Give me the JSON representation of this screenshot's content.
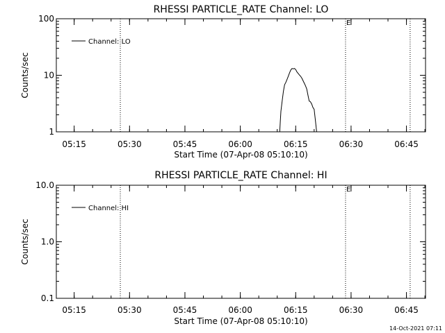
{
  "footer": {
    "timestamp": "14-Oct-2021 07:11"
  },
  "chart_data": [
    {
      "type": "line",
      "title": "RHESSI PARTICLE_RATE Channel: LO",
      "xlabel": "Start Time (07-Apr-08 05:10:10)",
      "ylabel": "Counts/sec",
      "y_scale": "log",
      "ylim": [
        1,
        100
      ],
      "yticks": [
        1,
        10,
        100
      ],
      "ytick_labels": [
        "1",
        "10",
        "100"
      ],
      "xlim": [
        "05:10:10",
        "06:50:10"
      ],
      "xticks": [
        "05:15",
        "05:30",
        "05:45",
        "06:00",
        "06:15",
        "06:30",
        "06:45"
      ],
      "legend": {
        "position": "top-left",
        "entries": [
          "Channel: LO"
        ]
      },
      "annotations": [
        {
          "time": "05:27:30",
          "text": ""
        },
        {
          "time": "06:28:30",
          "text": "E"
        },
        {
          "time": "06:46:00",
          "text": ""
        }
      ],
      "series": [
        {
          "name": "Channel: LO",
          "x": [
            "06:10:40",
            "06:10:50",
            "06:11:00",
            "06:11:20",
            "06:11:40",
            "06:12:00",
            "06:12:20",
            "06:12:40",
            "06:13:00",
            "06:13:20",
            "06:13:40",
            "06:14:00",
            "06:14:20",
            "06:14:40",
            "06:15:00",
            "06:15:20",
            "06:15:40",
            "06:16:00",
            "06:16:20",
            "06:16:40",
            "06:17:00",
            "06:17:20",
            "06:17:40",
            "06:18:00",
            "06:18:20",
            "06:18:40",
            "06:19:00",
            "06:19:20",
            "06:19:40",
            "06:20:00",
            "06:20:20",
            "06:20:40"
          ],
          "y": [
            1,
            1.5,
            2.3,
            3.5,
            5.2,
            6.8,
            7.5,
            8.5,
            9.6,
            11,
            12.4,
            13.2,
            13,
            13.2,
            12.6,
            11.5,
            10.8,
            10.1,
            9.6,
            8.9,
            8,
            7.2,
            6.5,
            5.7,
            4.4,
            3.5,
            3.4,
            3.1,
            2.7,
            2.5,
            1.6,
            1
          ]
        }
      ]
    },
    {
      "type": "line",
      "title": "RHESSI PARTICLE_RATE Channel: HI",
      "xlabel": "Start Time (07-Apr-08 05:10:10)",
      "ylabel": "Counts/sec",
      "y_scale": "log",
      "ylim": [
        0.1,
        10
      ],
      "yticks": [
        0.1,
        1,
        10
      ],
      "ytick_labels": [
        "0.1",
        "1.0",
        "10.0"
      ],
      "xlim": [
        "05:10:10",
        "06:50:10"
      ],
      "xticks": [
        "05:15",
        "05:30",
        "05:45",
        "06:00",
        "06:15",
        "06:30",
        "06:45"
      ],
      "legend": {
        "position": "top-left",
        "entries": [
          "Channel: HI"
        ]
      },
      "annotations": [
        {
          "time": "05:27:30",
          "text": ""
        },
        {
          "time": "06:28:30",
          "text": "E"
        },
        {
          "time": "06:46:00",
          "text": ""
        }
      ],
      "series": [
        {
          "name": "Channel: HI",
          "x": [],
          "y": []
        }
      ]
    }
  ]
}
